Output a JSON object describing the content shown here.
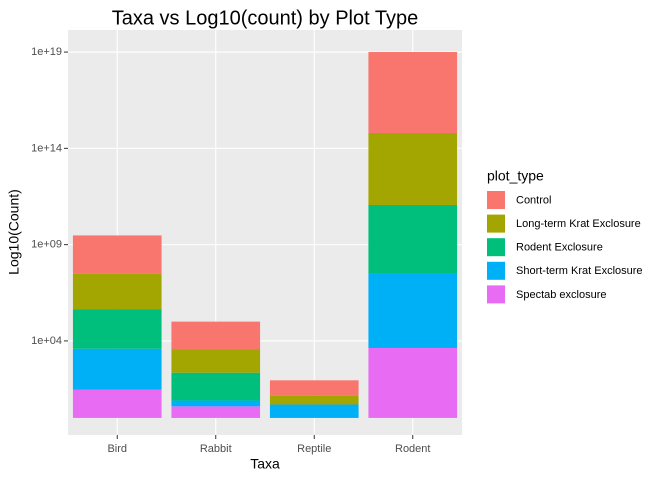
{
  "chart_data": {
    "type": "bar",
    "stacked": true,
    "log_scale_y": true,
    "grid": true,
    "title": "Taxa vs Log10(count) by Plot Type",
    "x_label": "Taxa",
    "y_label": "Log10(Count)",
    "legend_title": "plot_type",
    "legend_position": "right",
    "categories": [
      "Bird",
      "Rabbit",
      "Reptile",
      "Rodent"
    ],
    "series": [
      {
        "name": "Control",
        "color": "#F8766D",
        "values": [
          100,
          28,
          6,
          16000
        ]
      },
      {
        "name": "Long-term Krat Exclosure",
        "color": "#A3A500",
        "values": [
          70,
          16,
          3,
          5500
        ]
      },
      {
        "name": "Rodent Exclosure",
        "color": "#00BF7D",
        "values": [
          110,
          28,
          1,
          3800
        ]
      },
      {
        "name": "Short-term Krat Exclosure",
        "color": "#00B0F6",
        "values": [
          130,
          2,
          5,
          7000
        ]
      },
      {
        "name": "Spectab exclosure",
        "color": "#E76BF3",
        "values": [
          30,
          4,
          null,
          4300
        ]
      }
    ],
    "ylim": [
      0.13,
      1.4e+20
    ],
    "yticks": [
      {
        "value": 10000,
        "label": "1e+04"
      },
      {
        "value": 1000000000.0,
        "label": "1e+09"
      },
      {
        "value": 100000000000000.0,
        "label": "1e+14"
      },
      {
        "value": 1e+19,
        "label": "1e+19"
      }
    ]
  }
}
